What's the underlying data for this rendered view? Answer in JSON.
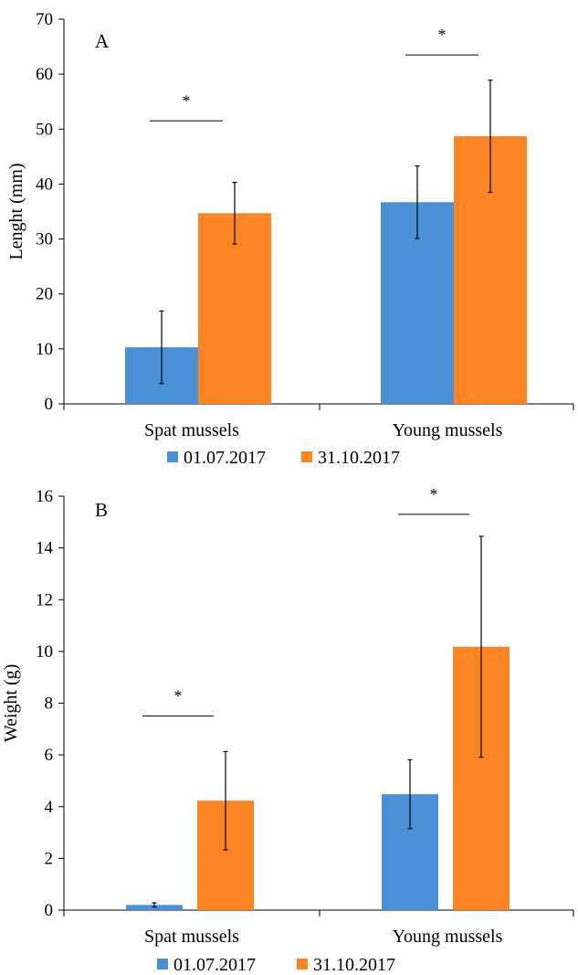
{
  "chart_data": [
    {
      "type": "bar",
      "panel_label": "A",
      "ylabel": "Lenght (mm)",
      "xlabel": "",
      "ylim": [
        0,
        70
      ],
      "yticks": [
        0,
        10,
        20,
        30,
        40,
        50,
        60,
        70
      ],
      "categories": [
        "Spat mussels",
        "Young mussels"
      ],
      "series": [
        {
          "name": "01.07.2017",
          "color": "#4a90d4",
          "values": [
            10.3,
            36.7
          ],
          "errors": [
            6.6,
            6.6
          ]
        },
        {
          "name": "31.10.2017",
          "color": "#fb8524",
          "values": [
            34.7,
            48.7
          ],
          "errors": [
            5.6,
            10.2
          ]
        }
      ],
      "significance": [
        {
          "category": "Spat mussels",
          "label": "*",
          "line_y": 51.5
        },
        {
          "category": "Young mussels",
          "label": "*",
          "line_y": 63.5
        }
      ],
      "legend_position": "bottom",
      "grid": false
    },
    {
      "type": "bar",
      "panel_label": "B",
      "ylabel": "Weight (g)",
      "xlabel": "",
      "ylim": [
        0,
        16
      ],
      "yticks": [
        0,
        2,
        4,
        6,
        8,
        10,
        12,
        14,
        16
      ],
      "categories": [
        "Spat mussels",
        "Young mussels"
      ],
      "series": [
        {
          "name": "01.07.2017",
          "color": "#4a90d4",
          "values": [
            0.2,
            4.48
          ],
          "errors": [
            0.08,
            1.33
          ]
        },
        {
          "name": "31.10.2017",
          "color": "#fb8524",
          "values": [
            4.23,
            10.18
          ],
          "errors": [
            1.9,
            4.27
          ]
        }
      ],
      "significance": [
        {
          "category": "Spat mussels",
          "label": "*",
          "line_y": 7.5
        },
        {
          "category": "Young mussels",
          "label": "*",
          "line_y": 15.3
        }
      ],
      "legend_position": "bottom",
      "grid": false
    }
  ]
}
